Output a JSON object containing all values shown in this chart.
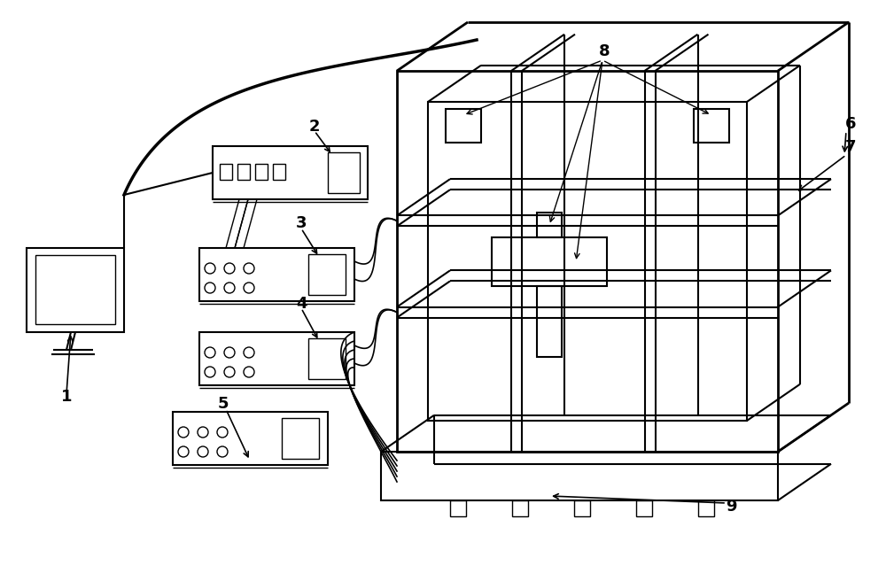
{
  "background_color": "#ffffff",
  "line_color": "#000000",
  "lw": 1.5,
  "lw_thick": 2.0,
  "lw_thin": 1.0,
  "label_fontsize": 13,
  "label_fontweight": "bold"
}
